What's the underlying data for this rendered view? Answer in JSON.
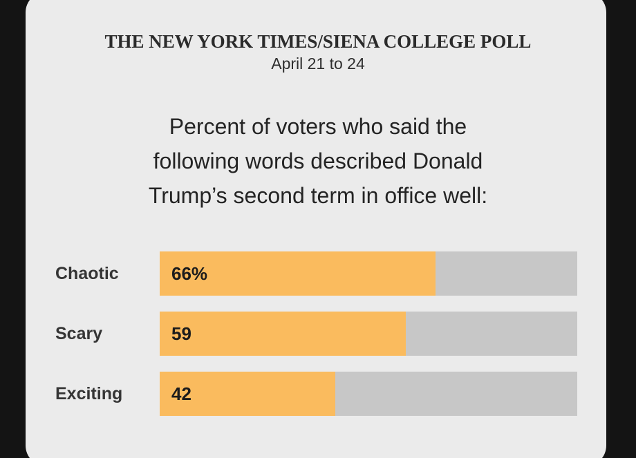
{
  "header": {
    "kicker": "THE NEW YORK TIMES/SIENA COLLEGE POLL",
    "dates": "April 21 to 24"
  },
  "question": {
    "full_text": "Percent of voters who said the following words described Donald Trump’s second term in office well:",
    "lines": [
      "Percent of voters who said the",
      "following words described Donald",
      "Trump’s second term in office well:"
    ]
  },
  "chart_data": {
    "type": "bar",
    "orientation": "horizontal",
    "title": "Percent of voters who said the following words described Donald Trump’s second term in office well:",
    "categories": [
      "Chaotic",
      "Scary",
      "Exciting"
    ],
    "values": [
      66,
      59,
      42
    ],
    "xlim": [
      0,
      100
    ],
    "grid": false,
    "legend": false,
    "bars": [
      {
        "label": "Chaotic",
        "value": 66,
        "display": "66%"
      },
      {
        "label": "Scary",
        "value": 59,
        "display": "59"
      },
      {
        "label": "Exciting",
        "value": 42,
        "display": "42"
      }
    ]
  },
  "colors": {
    "page_background": "#141414",
    "card_background": "#EBEBEB",
    "bar_fill": "#FABB5E",
    "bar_track": "#C7C7C7",
    "text": "#242424"
  }
}
